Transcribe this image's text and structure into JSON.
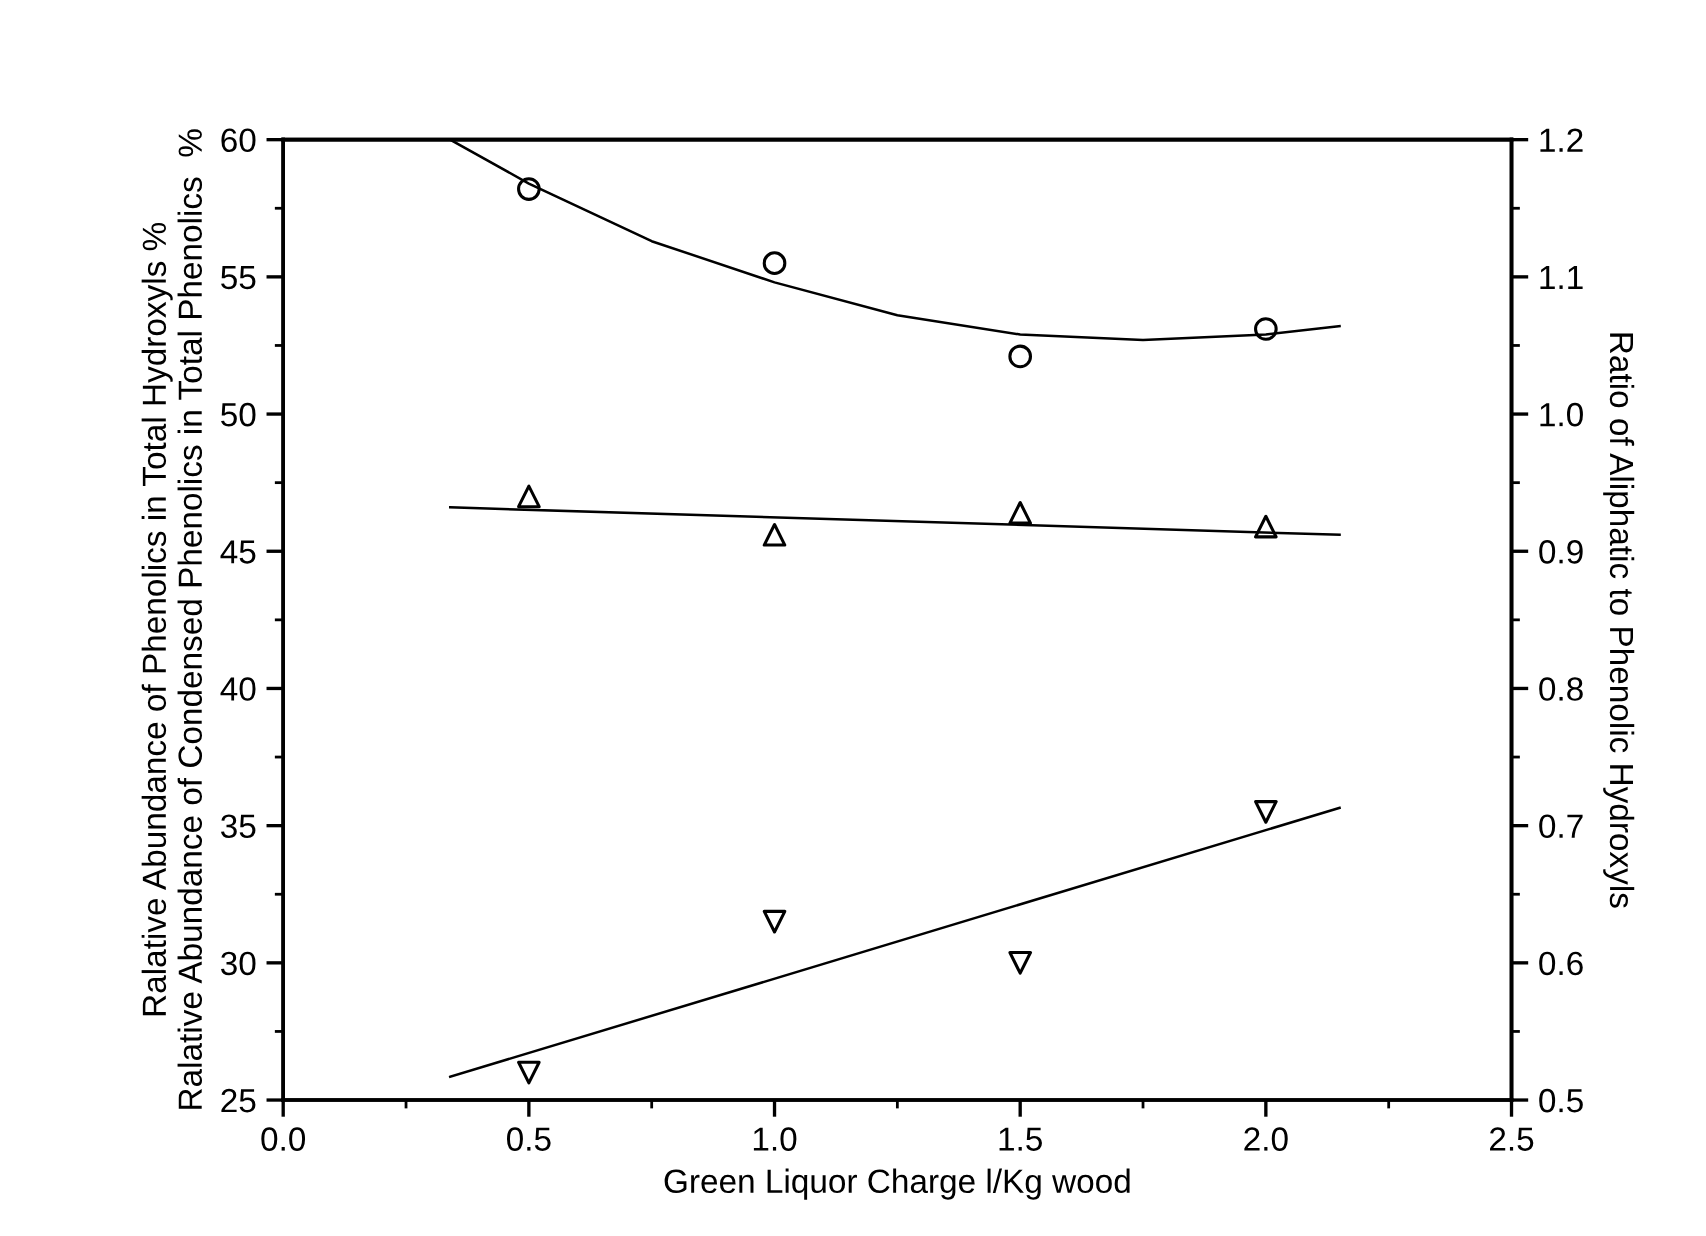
{
  "chart_data": {
    "type": "scatter",
    "xlabel": "Green Liquor Charge l/Kg wood",
    "ylabel": "Ralative Abundance of Phenolics in Total Hydroxyls %\nRalative Abundance of Condensed Phenolics in Total Phenolics  %",
    "y2label": "Ratio of Aliphatic to Phenolic Hydroxyls",
    "xlim": [
      0.0,
      2.5
    ],
    "xticks": [
      {
        "value": 0.0,
        "label": "0.0"
      },
      {
        "value": 0.5,
        "label": "0.5"
      },
      {
        "value": 1.0,
        "label": "1.0"
      },
      {
        "value": 1.5,
        "label": "1.5"
      },
      {
        "value": 2.0,
        "label": "2.0"
      },
      {
        "value": 2.5,
        "label": "2.5"
      }
    ],
    "ylim": [
      25,
      60
    ],
    "yticks": [
      25,
      30,
      35,
      40,
      45,
      50,
      55,
      60
    ],
    "y2lim": [
      0.5,
      1.2
    ],
    "y2ticks": [
      0.5,
      0.6,
      0.7,
      0.8,
      0.9,
      {
        "value": 1.0,
        "label": "1.0"
      },
      1.1,
      1.2
    ],
    "grid": false,
    "legend": false,
    "x": [
      0.5,
      1.0,
      1.5,
      2.0
    ],
    "series": [
      {
        "marker": "circle",
        "color": "#000000",
        "values": [
          58.2,
          55.5,
          52.1,
          53.1
        ]
      },
      {
        "marker": "triangle",
        "color": "#000000",
        "values": [
          47.0,
          45.6,
          46.4,
          45.9
        ]
      },
      {
        "marker": "triangle_down",
        "color": "#000000",
        "axis": "y2",
        "values": [
          0.52,
          0.63,
          0.6,
          0.71
        ]
      },
      {
        "type": "line",
        "marker": "none",
        "color": "#000000",
        "x": [
          0.34,
          0.5,
          0.75,
          1.0,
          1.25,
          1.5,
          1.75,
          2.0,
          2.15
        ],
        "values": [
          60.0,
          58.4,
          56.3,
          54.8,
          53.6,
          52.9,
          52.7,
          52.9,
          53.2
        ]
      },
      {
        "type": "line",
        "marker": "none",
        "color": "#000000",
        "x": [
          0.34,
          2.15
        ],
        "values": [
          46.6,
          45.6
        ]
      },
      {
        "type": "line",
        "marker": "none",
        "color": "#000000",
        "axis": "y2",
        "x": [
          0.34,
          2.15
        ],
        "values": [
          0.517,
          0.713
        ]
      }
    ]
  }
}
